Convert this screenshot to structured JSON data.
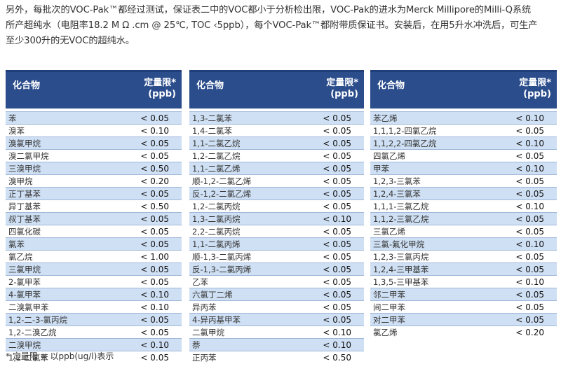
{
  "intro": {
    "line1": "另外，每批次的VOC-Pak™都经过测试，保证表二中的VOC都小于分析检出限，VOC-Pak的进水为Merck Millipore的Milli-Q系统",
    "line2": "所产超纯水（电阻率18.2 M Ω .cm @ 25℃, TOC ‹5ppb），每个VOC-Pak™都附带质保证书。安装后，在用5升水冲洗后，可生产",
    "line3": "至少300升的无VOC的超纯水。"
  },
  "header": {
    "compound": "化合物",
    "limit_line1": "定量限*",
    "limit_line2": "(ppb)"
  },
  "tables": [
    {
      "rows": [
        {
          "compound": "苯",
          "limit": "< 0.05"
        },
        {
          "compound": "溴苯",
          "limit": "< 0.10"
        },
        {
          "compound": "溴氯甲烷",
          "limit": "< 0.05"
        },
        {
          "compound": "溴二氯甲烷",
          "limit": "< 0.05"
        },
        {
          "compound": "三溴甲烷",
          "limit": "< 0.50"
        },
        {
          "compound": "溴甲烷",
          "limit": "< 0.20"
        },
        {
          "compound": "正丁基苯",
          "limit": "< 0.05"
        },
        {
          "compound": "异丁基苯",
          "limit": "< 0.50"
        },
        {
          "compound": "叔丁基苯",
          "limit": "< 0.05"
        },
        {
          "compound": "四氯化碳",
          "limit": "< 0.05"
        },
        {
          "compound": "氯苯",
          "limit": "< 0.05"
        },
        {
          "compound": "氯乙烷",
          "limit": "< 1.00"
        },
        {
          "compound": "三氯甲烷",
          "limit": "< 0.05"
        },
        {
          "compound": "2-氯甲苯",
          "limit": "< 0.05"
        },
        {
          "compound": "4-氯甲苯",
          "limit": "< 0.10"
        },
        {
          "compound": "二溴氯甲苯",
          "limit": "< 0.10"
        },
        {
          "compound": "1,2-二-3-氯丙烷",
          "limit": "< 0.05"
        },
        {
          "compound": "1,2-二溴乙烷",
          "limit": "< 0.05"
        },
        {
          "compound": "二溴甲烷",
          "limit": "< 0.10"
        },
        {
          "compound": "1,2-二氯苯",
          "limit": "< 0.05"
        }
      ]
    },
    {
      "rows": [
        {
          "compound": "1,3-二氯苯",
          "limit": "< 0.05"
        },
        {
          "compound": "1,4-二氯苯",
          "limit": "< 0.05"
        },
        {
          "compound": "1,1-二氯乙烷",
          "limit": "< 0.05"
        },
        {
          "compound": "1,2-二氯乙烷",
          "limit": "< 0.05"
        },
        {
          "compound": "1,1-二氯乙烯",
          "limit": "< 0.05"
        },
        {
          "compound": "顺-1,2-二氯乙烯",
          "limit": "< 0.05"
        },
        {
          "compound": "反-1,2-二氯乙烯",
          "limit": "< 0.05"
        },
        {
          "compound": "1,2-二氯丙烷",
          "limit": "< 0.05"
        },
        {
          "compound": "1,3-二氯丙烷",
          "limit": "< 0.10"
        },
        {
          "compound": "2,2-二氯丙烷",
          "limit": "< 0.05"
        },
        {
          "compound": "1,1-二氯丙烯",
          "limit": "< 0.05"
        },
        {
          "compound": "顺-1,3-二氯丙烯",
          "limit": "< 0.05"
        },
        {
          "compound": "反-1,3-二氯丙烯",
          "limit": "< 0.05"
        },
        {
          "compound": "乙苯",
          "limit": "< 0.05"
        },
        {
          "compound": "六氯丁二烯",
          "limit": "< 0.05"
        },
        {
          "compound": "异丙苯",
          "limit": "< 0.05"
        },
        {
          "compound": "4-异丙基甲苯",
          "limit": "< 0.05"
        },
        {
          "compound": "二氯甲烷",
          "limit": "< 0.10"
        },
        {
          "compound": "萘",
          "limit": "< 0.10"
        },
        {
          "compound": "正丙苯",
          "limit": "< 0.50"
        }
      ]
    },
    {
      "rows": [
        {
          "compound": "苯乙烯",
          "limit": "< 0.10"
        },
        {
          "compound": "1,1,1,2-四氯乙烷",
          "limit": "< 0.05"
        },
        {
          "compound": "1,1,2,2-四氯乙烷",
          "limit": "< 0.10"
        },
        {
          "compound": "四氯乙烯",
          "limit": "< 0.05"
        },
        {
          "compound": "甲苯",
          "limit": "< 0.10"
        },
        {
          "compound": "1,2,3-三氯苯",
          "limit": "< 0.05"
        },
        {
          "compound": "1,2,4-三氯苯",
          "limit": "< 0.05"
        },
        {
          "compound": "1,1,1-三氯乙烷",
          "limit": "< 0.10"
        },
        {
          "compound": "1,1,2-三氯乙烷",
          "limit": "< 0.05"
        },
        {
          "compound": "三氯乙烯",
          "limit": "< 0.05"
        },
        {
          "compound": "三氯-氟化甲烷",
          "limit": "< 0.10"
        },
        {
          "compound": "1,2,3-三氯丙烷",
          "limit": "< 0.05"
        },
        {
          "compound": "1,2,4-三甲基苯",
          "limit": "< 0.05"
        },
        {
          "compound": "1,3,5-三甲基苯",
          "limit": "< 0.10"
        },
        {
          "compound": "邻二甲苯",
          "limit": "< 0.05"
        },
        {
          "compound": "间二甲苯",
          "limit": "< 0.05"
        },
        {
          "compound": "对二甲苯",
          "limit": "< 0.05"
        },
        {
          "compound": "氯乙烯",
          "limit": "< 0.20"
        }
      ]
    }
  ],
  "footnote": "* 定量限 = 以ppb(ug/l)表示"
}
